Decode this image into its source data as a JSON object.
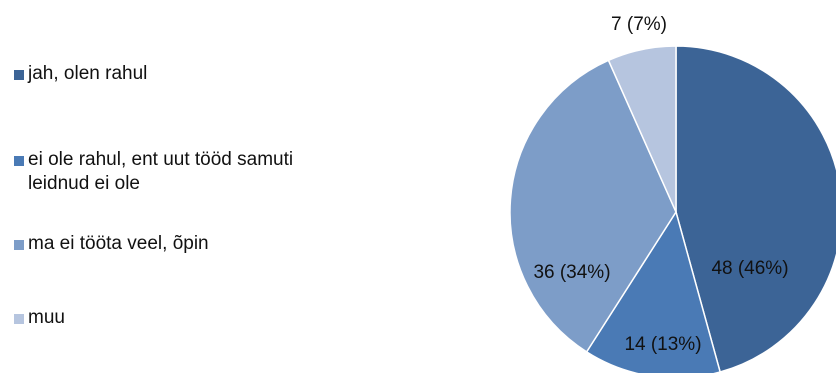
{
  "chart_data": {
    "type": "pie",
    "categories": [
      "jah, olen rahul",
      "ei ole rahul, ent uut tööd samuti leidnud ei ole",
      "ma ei tööta veel, õpin",
      "muu"
    ],
    "values": [
      48,
      14,
      36,
      7
    ],
    "data_labels": [
      "48 (46%)",
      "14 (13%)",
      "36 (34%)",
      "7 (7%)"
    ],
    "colors": [
      "#3c6496",
      "#4a7ab5",
      "#7d9dc8",
      "#b6c5df"
    ],
    "start_angle_deg": 0,
    "direction": "clockwise",
    "legend_position": "left"
  }
}
